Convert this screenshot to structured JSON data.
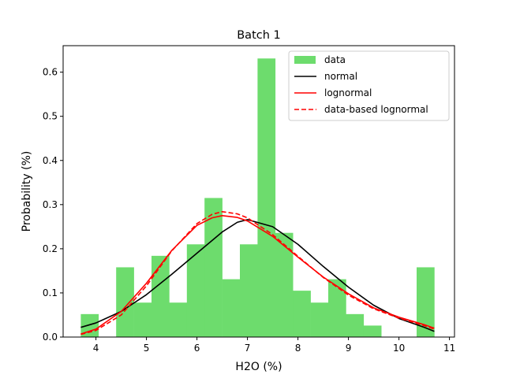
{
  "chart_data": {
    "type": "bar",
    "title": "Batch 1",
    "xlabel": "H2O (%)",
    "ylabel": "Probability (%)",
    "xlim": [
      3.35,
      11.1
    ],
    "ylim": [
      0,
      0.66
    ],
    "xticks": [
      4,
      5,
      6,
      7,
      8,
      9,
      10,
      11
    ],
    "yticks": [
      0.0,
      0.1,
      0.2,
      0.3,
      0.4,
      0.5,
      0.6
    ],
    "ytick_labels": [
      "0.0",
      "0.1",
      "0.2",
      "0.3",
      "0.4",
      "0.5",
      "0.6"
    ],
    "grid": false,
    "legend_position": "top-right",
    "histogram": {
      "name": "data",
      "color": "#6ddc6d",
      "bin_edges": [
        3.7,
        4.05,
        4.4,
        4.75,
        5.1,
        5.45,
        5.8,
        6.15,
        6.5,
        6.85,
        7.2,
        7.55,
        7.9,
        8.25,
        8.6,
        8.95,
        9.3,
        9.65,
        10.0,
        10.35,
        10.7
      ],
      "values": [
        0.052,
        0.0,
        0.158,
        0.078,
        0.184,
        0.078,
        0.21,
        0.315,
        0.131,
        0.21,
        0.631,
        0.236,
        0.105,
        0.078,
        0.131,
        0.052,
        0.026,
        0.0,
        0.0,
        0.158
      ]
    },
    "series": [
      {
        "name": "normal",
        "color": "#000000",
        "dash": "solid",
        "x": [
          3.7,
          4.0,
          4.5,
          5.0,
          5.5,
          6.0,
          6.5,
          6.8,
          7.0,
          7.5,
          8.0,
          8.5,
          9.0,
          9.5,
          10.0,
          10.5,
          10.7
        ],
        "y": [
          0.022,
          0.032,
          0.058,
          0.096,
          0.142,
          0.19,
          0.238,
          0.26,
          0.266,
          0.25,
          0.21,
          0.16,
          0.113,
          0.072,
          0.042,
          0.022,
          0.013
        ]
      },
      {
        "name": "lognormal",
        "color": "#ff0000",
        "dash": "solid",
        "x": [
          3.7,
          4.0,
          4.5,
          5.0,
          5.5,
          6.0,
          6.3,
          6.5,
          6.8,
          7.0,
          7.5,
          8.0,
          8.5,
          9.0,
          9.5,
          10.0,
          10.5,
          10.7
        ],
        "y": [
          0.007,
          0.018,
          0.058,
          0.122,
          0.196,
          0.253,
          0.27,
          0.275,
          0.271,
          0.263,
          0.228,
          0.181,
          0.136,
          0.098,
          0.066,
          0.045,
          0.028,
          0.02
        ]
      },
      {
        "name": "data-based lognormal",
        "color": "#ff0000",
        "dash": "dashed",
        "x": [
          3.7,
          4.0,
          4.5,
          5.0,
          5.5,
          6.0,
          6.3,
          6.5,
          6.8,
          7.0,
          7.5,
          8.0,
          8.5,
          9.0,
          9.5,
          10.0,
          10.5,
          10.7
        ],
        "y": [
          0.006,
          0.015,
          0.05,
          0.116,
          0.195,
          0.257,
          0.278,
          0.284,
          0.279,
          0.27,
          0.232,
          0.183,
          0.135,
          0.095,
          0.064,
          0.043,
          0.026,
          0.018
        ]
      }
    ]
  }
}
